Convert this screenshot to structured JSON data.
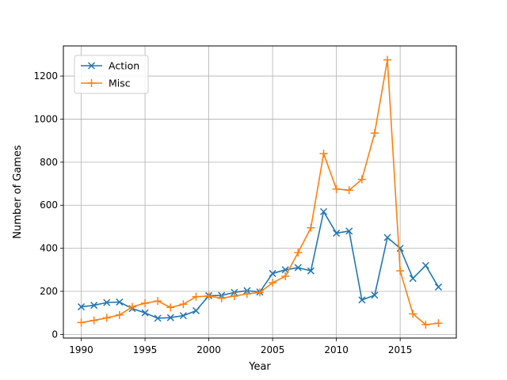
{
  "chart_data": {
    "type": "line",
    "title": "",
    "xlabel": "Year",
    "ylabel": "Number of Games",
    "xlim": [
      1988.6,
      2019.4
    ],
    "ylim": [
      -17,
      1340
    ],
    "xticks": [
      1990,
      1995,
      2000,
      2005,
      2010,
      2015
    ],
    "yticks": [
      0,
      200,
      400,
      600,
      800,
      1000,
      1200
    ],
    "grid": true,
    "legend_position": "upper-left",
    "x": [
      1990,
      1991,
      1992,
      1993,
      1994,
      1995,
      1996,
      1997,
      1998,
      1999,
      2000,
      2001,
      2002,
      2003,
      2004,
      2005,
      2006,
      2007,
      2008,
      2009,
      2010,
      2011,
      2012,
      2013,
      2014,
      2015,
      2016,
      2017,
      2018
    ],
    "series": [
      {
        "name": "Action",
        "color": "#1f77b4",
        "marker": "x",
        "values": [
          128,
          135,
          148,
          150,
          120,
          100,
          75,
          78,
          87,
          110,
          180,
          181,
          195,
          203,
          197,
          283,
          300,
          310,
          295,
          570,
          470,
          480,
          160,
          182,
          450,
          400,
          260,
          320,
          220
        ]
      },
      {
        "name": "Misc",
        "color": "#ff7f0e",
        "marker": "+",
        "values": [
          55,
          65,
          77,
          90,
          128,
          145,
          155,
          125,
          140,
          175,
          178,
          168,
          178,
          188,
          195,
          240,
          270,
          380,
          495,
          840,
          675,
          670,
          720,
          935,
          1275,
          295,
          95,
          45,
          52
        ]
      }
    ]
  }
}
